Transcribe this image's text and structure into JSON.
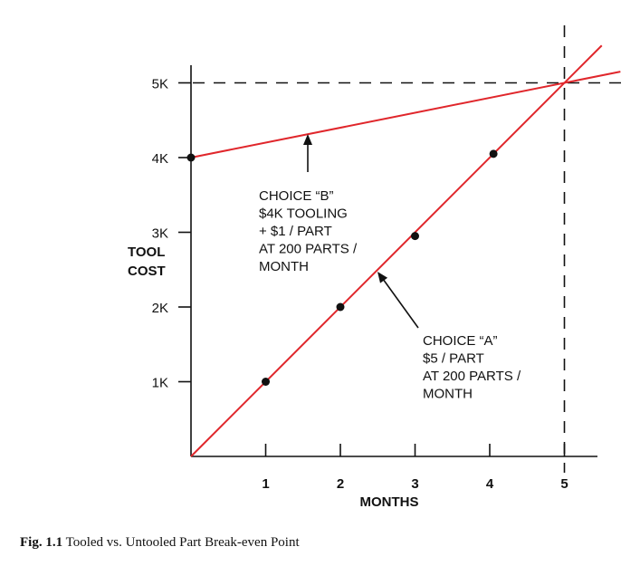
{
  "chart_data": {
    "type": "line",
    "xlabel": "MONTHS",
    "ylabel_lines": [
      "TOOL",
      "COST"
    ],
    "x_ticks": [
      {
        "value": 1,
        "label": "1"
      },
      {
        "value": 2,
        "label": "2"
      },
      {
        "value": 3,
        "label": "3"
      },
      {
        "value": 4,
        "label": "4"
      },
      {
        "value": 5,
        "label": "5"
      }
    ],
    "y_ticks": [
      {
        "value": 1000,
        "label": "1K"
      },
      {
        "value": 2000,
        "label": "2K"
      },
      {
        "value": 3000,
        "label": "3K"
      },
      {
        "value": 4000,
        "label": "4K"
      },
      {
        "value": 5000,
        "label": "5K"
      }
    ],
    "xlim": [
      0,
      5.5
    ],
    "ylim": [
      0,
      5000
    ],
    "series": [
      {
        "key": "B",
        "color": "#e0262b",
        "line": [
          [
            0,
            4000
          ],
          [
            5.75,
            5150
          ]
        ],
        "markers": [
          [
            0,
            4000
          ]
        ],
        "annotation_lines": [
          "CHOICE “B”",
          "$4K TOOLING",
          "+ $1 / PART",
          "AT 200 PARTS /",
          "MONTH"
        ]
      },
      {
        "key": "A",
        "color": "#e0262b",
        "line": [
          [
            0,
            0
          ],
          [
            5.5,
            5500
          ]
        ],
        "markers": [
          [
            1,
            1000
          ],
          [
            2,
            2000
          ],
          [
            3,
            2950
          ],
          [
            4.05,
            4050
          ]
        ],
        "annotation_lines": [
          "CHOICE “A”",
          "$5 / PART",
          "AT 200 PARTS /",
          "MONTH"
        ]
      }
    ],
    "break_even": {
      "x": 5,
      "y": 5000
    },
    "grid": false
  },
  "caption": {
    "label": "Fig. 1.1",
    "text": "Tooled vs. Untooled Part Break-even Point"
  }
}
